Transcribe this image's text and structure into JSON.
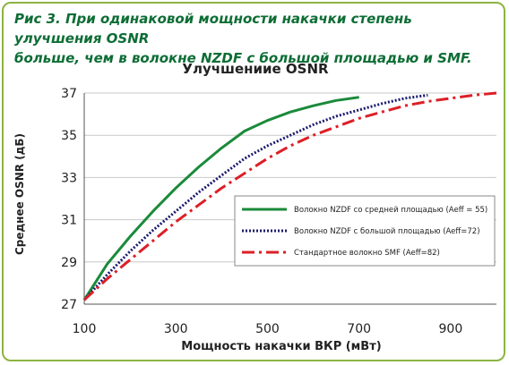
{
  "figure": {
    "caption_line1": "Рис 3. При одинаковой мощности накачки степень улучшения OSNR",
    "caption_line2": "больше, чем в волокне NZDF с большой площадью и SMF."
  },
  "chart_data": {
    "type": "line",
    "title": "Улучшениие OSNR",
    "xlabel": "Мощность накачки ВКР (мВт)",
    "ylabel": "Среднее OSNR (дБ)",
    "xlim": [
      100,
      1000
    ],
    "ylim": [
      27,
      37
    ],
    "x_ticks": [
      100,
      300,
      500,
      700,
      900
    ],
    "y_ticks": [
      27,
      29,
      31,
      33,
      35,
      37
    ],
    "grid": "horizontal",
    "legend_position": "right",
    "series": [
      {
        "name": "Волокно NZDF со средней площадью (Aeff = 55)",
        "color": "#1a8a3a",
        "style": "solid",
        "x": [
          100,
          150,
          200,
          250,
          300,
          350,
          400,
          450,
          500,
          550,
          600,
          650,
          700
        ],
        "y": [
          27.2,
          28.9,
          30.2,
          31.4,
          32.5,
          33.5,
          34.4,
          35.2,
          35.7,
          36.1,
          36.4,
          36.65,
          36.8
        ]
      },
      {
        "name": "Волокно NZDF с большой площадью (Aeff=72)",
        "color": "#1a1a6e",
        "style": "dotted",
        "x": [
          100,
          150,
          200,
          250,
          300,
          350,
          400,
          450,
          500,
          550,
          600,
          650,
          700,
          750,
          800,
          850
        ],
        "y": [
          27.2,
          28.4,
          29.5,
          30.5,
          31.4,
          32.3,
          33.1,
          33.9,
          34.5,
          35.0,
          35.5,
          35.9,
          36.2,
          36.5,
          36.75,
          36.9
        ]
      },
      {
        "name": "Стандартное волокно SMF (Aeff=82)",
        "color": "#dd1f26",
        "style": "dashdot",
        "x": [
          100,
          150,
          200,
          250,
          300,
          350,
          400,
          450,
          500,
          550,
          600,
          650,
          700,
          750,
          800,
          850,
          900,
          950,
          1000
        ],
        "y": [
          27.2,
          28.2,
          29.1,
          30.0,
          30.9,
          31.7,
          32.5,
          33.2,
          33.9,
          34.5,
          35.0,
          35.4,
          35.8,
          36.1,
          36.4,
          36.6,
          36.75,
          36.9,
          37.0
        ]
      }
    ]
  }
}
